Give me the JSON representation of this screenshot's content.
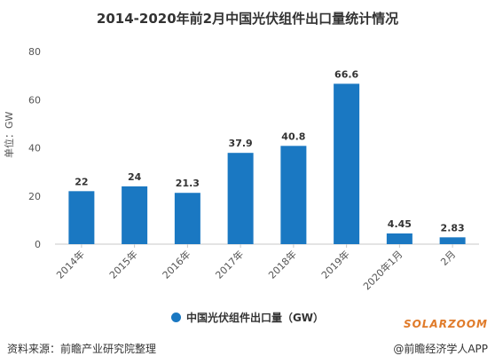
{
  "chart_data": {
    "type": "bar",
    "title": "2014-2020年前2月中国光伏组件出口量统计情况",
    "ylabel": "单位：GW",
    "categories": [
      "2014年",
      "2015年",
      "2016年",
      "2017年",
      "2018年",
      "2019年",
      "2020年1月",
      "2月"
    ],
    "series": [
      {
        "name": "中国光伏组件出口量（GW）",
        "values": [
          22,
          24,
          21.3,
          37.9,
          40.8,
          66.6,
          4.45,
          2.83
        ]
      }
    ],
    "data_labels": [
      "22",
      "24",
      "21.3",
      "37.9",
      "40.8",
      "66.6",
      "4.45",
      "2.83"
    ],
    "ylim": [
      0,
      80
    ],
    "yticks": [
      0,
      20,
      40,
      60,
      80
    ],
    "grid": false,
    "legend_position": "bottom",
    "bar_color": "#1a78c2"
  },
  "legend": {
    "label": "中国光伏组件出口量（GW）"
  },
  "footer": {
    "source": "资料来源：前瞻产业研究院整理",
    "credit": "@前瞻经济学人APP",
    "brand": "SOLARZOOM"
  }
}
